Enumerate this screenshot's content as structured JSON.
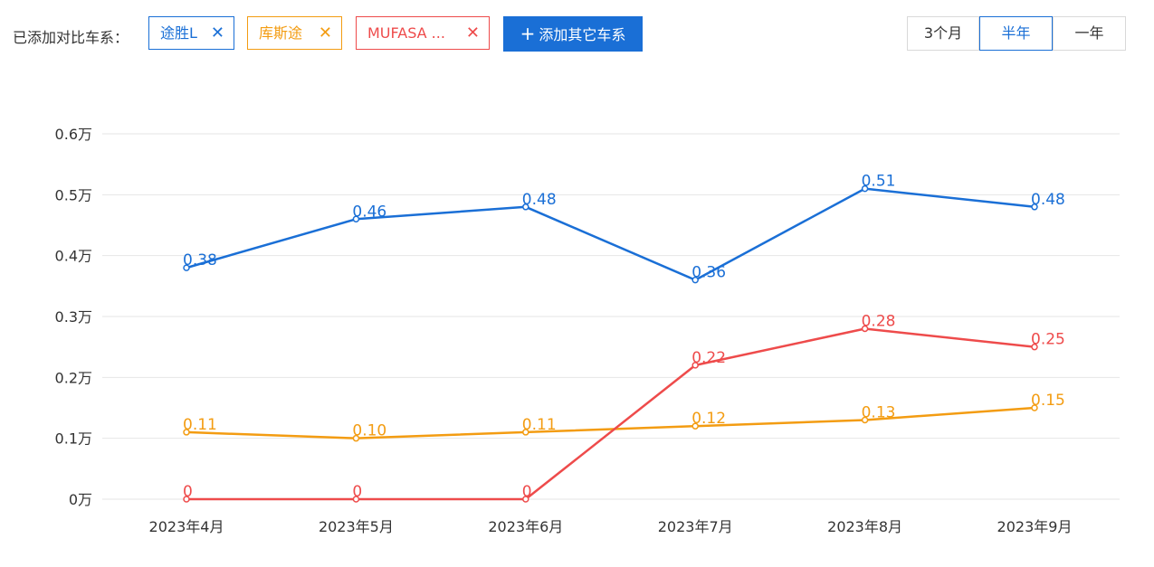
{
  "filter": {
    "prefix_label": "已添加对比车系：",
    "tags": [
      {
        "label": "途胜L",
        "color": "#1a6fd6"
      },
      {
        "label": "库斯途",
        "color": "#f39c12"
      },
      {
        "label": "MUFASA ...",
        "color": "#ee4b4b"
      }
    ],
    "close_symbol": "✕",
    "add_button": {
      "plus": "+",
      "label": "添加其它车系"
    }
  },
  "periods": {
    "options": [
      "3个月",
      "半年",
      "一年"
    ],
    "selected": "半年"
  },
  "chart_data": {
    "type": "line",
    "categories": [
      "2023年4月",
      "2023年5月",
      "2023年6月",
      "2023年7月",
      "2023年8月",
      "2023年9月"
    ],
    "yticks": [
      "0万",
      "0.1万",
      "0.2万",
      "0.3万",
      "0.4万",
      "0.5万",
      "0.6万"
    ],
    "ylim": [
      0,
      0.6
    ],
    "grid": true,
    "series": [
      {
        "name": "途胜L",
        "color": "#1a6fd6",
        "values": [
          0.38,
          0.46,
          0.48,
          0.36,
          0.51,
          0.48
        ],
        "labels": [
          "0.38",
          "0.46",
          "0.48",
          "0.36",
          "0.51",
          "0.48"
        ]
      },
      {
        "name": "库斯途",
        "color": "#f39c12",
        "values": [
          0.11,
          0.1,
          0.11,
          0.12,
          0.13,
          0.15
        ],
        "labels": [
          "0.11",
          "0.10",
          "0.11",
          "0.12",
          "0.13",
          "0.15"
        ]
      },
      {
        "name": "MUFASA ...",
        "color": "#ee4b4b",
        "values": [
          0,
          0,
          0,
          0.22,
          0.28,
          0.25
        ],
        "labels": [
          "0",
          "0",
          "0",
          "0.22",
          "0.28",
          "0.25"
        ]
      }
    ]
  }
}
